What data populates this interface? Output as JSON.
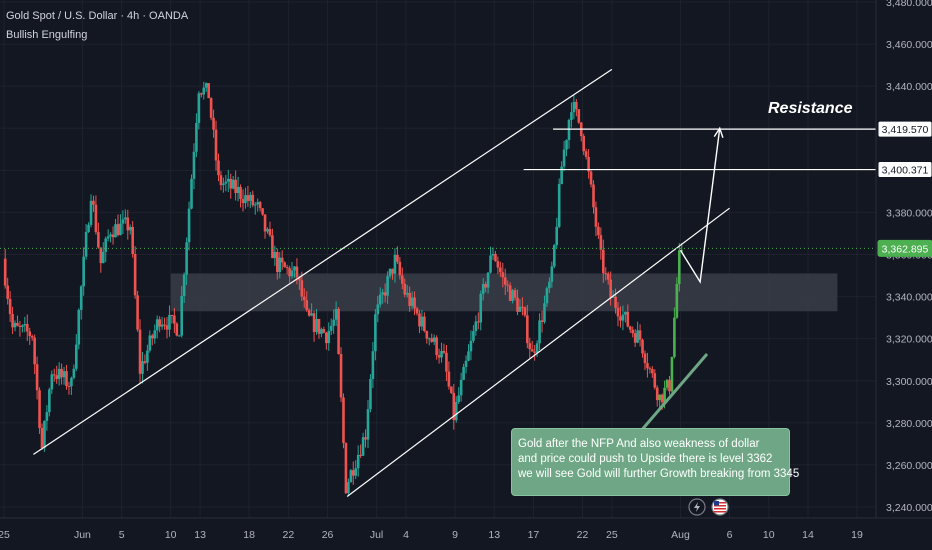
{
  "header": {
    "title": "Gold Spot / U.S. Dollar · 4h · OANDA",
    "pattern": "Bullish Engulfing"
  },
  "annotations": {
    "resistance": "Resistance",
    "callout": [
      "Gold after the NFP And also weakness of dollar",
      "and price could push to Upside there is level 3362",
      "we will see Gold will further Growth breaking from 3345"
    ]
  },
  "colors": {
    "background": "#131722",
    "up_candle": "#26a69a",
    "up_candle_bright": "#4caf50",
    "down_candle": "#ef5350",
    "grid": "#1e222d",
    "zone": "#3a3d48",
    "price_tag_current": "#4caf50",
    "callout_bg": "#6fa786"
  },
  "chart_data": {
    "type": "candlestick",
    "symbol": "Gold Spot / U.S. Dollar",
    "timeframe": "4h",
    "source": "OANDA",
    "ylim": [
      3240,
      3480
    ],
    "y_ticks": [
      3240,
      3260,
      3280,
      3300,
      3320,
      3340,
      3360,
      3380,
      3400,
      3420,
      3440,
      3460,
      3480
    ],
    "y_tick_labels": [
      "3,240.000",
      "3,260.000",
      "3,280.000",
      "3,300.000",
      "3,320.000",
      "3,340.000",
      "3,360.000",
      "3,380.000",
      "3,400.000",
      "3,420.000",
      "3,440.000",
      "3,460.000",
      "3,480.000"
    ],
    "x_ticks": [
      {
        "label": "25",
        "day": -7
      },
      {
        "label": "Jun",
        "day": 1
      },
      {
        "label": "5",
        "day": 5
      },
      {
        "label": "10",
        "day": 10
      },
      {
        "label": "13",
        "day": 13
      },
      {
        "label": "18",
        "day": 18
      },
      {
        "label": "22",
        "day": 22
      },
      {
        "label": "26",
        "day": 26
      },
      {
        "label": "Jul",
        "day": 31
      },
      {
        "label": "4",
        "day": 34
      },
      {
        "label": "9",
        "day": 39
      },
      {
        "label": "13",
        "day": 43
      },
      {
        "label": "17",
        "day": 47
      },
      {
        "label": "22",
        "day": 52
      },
      {
        "label": "25",
        "day": 55
      },
      {
        "label": "Aug",
        "day": 62
      },
      {
        "label": "6",
        "day": 67
      },
      {
        "label": "10",
        "day": 71
      },
      {
        "label": "14",
        "day": 75
      },
      {
        "label": "19",
        "day": 80
      }
    ],
    "price_path": [
      [
        -7,
        3358
      ],
      [
        -6,
        3325
      ],
      [
        -4,
        3322
      ],
      [
        -3,
        3268
      ],
      [
        -2,
        3305
      ],
      [
        0,
        3298
      ],
      [
        2,
        3390
      ],
      [
        3,
        3356
      ],
      [
        4,
        3372
      ],
      [
        6,
        3374
      ],
      [
        7,
        3305
      ],
      [
        9,
        3330
      ],
      [
        11,
        3325
      ],
      [
        13,
        3440
      ],
      [
        14,
        3436
      ],
      [
        15,
        3395
      ],
      [
        17,
        3390
      ],
      [
        19,
        3382
      ],
      [
        21,
        3355
      ],
      [
        23,
        3350
      ],
      [
        24,
        3330
      ],
      [
        26,
        3322
      ],
      [
        27,
        3330
      ],
      [
        28,
        3250
      ],
      [
        30,
        3275
      ],
      [
        31,
        3330
      ],
      [
        33,
        3357
      ],
      [
        34,
        3342
      ],
      [
        36,
        3325
      ],
      [
        38,
        3310
      ],
      [
        39,
        3283
      ],
      [
        41,
        3322
      ],
      [
        43,
        3362
      ],
      [
        44,
        3348
      ],
      [
        46,
        3332
      ],
      [
        47,
        3312
      ],
      [
        49,
        3350
      ],
      [
        50,
        3402
      ],
      [
        51,
        3432
      ],
      [
        52,
        3420
      ],
      [
        53,
        3390
      ],
      [
        54,
        3358
      ],
      [
        55,
        3340
      ],
      [
        56,
        3333
      ],
      [
        57,
        3325
      ],
      [
        58,
        3320
      ],
      [
        59,
        3305
      ],
      [
        60,
        3292
      ],
      [
        61,
        3298
      ],
      [
        62,
        3362
      ]
    ],
    "levels": [
      {
        "label": "3,419.570",
        "value": 3419.57,
        "x_from": 49,
        "style": "line"
      },
      {
        "label": "3,400.371",
        "value": 3400.371,
        "x_from": 46,
        "style": "line"
      },
      {
        "label": "3,362.895",
        "value": 3362.895,
        "style": "current"
      }
    ],
    "zone": {
      "from": 3333,
      "to": 3351,
      "x_from": 10,
      "x_to": 78
    },
    "channels": [
      {
        "x1": -4,
        "y1": 3265,
        "x2": 55,
        "y2": 3448
      },
      {
        "x1": 28,
        "y1": 3245,
        "x2": 67,
        "y2": 3382
      }
    ],
    "projection": [
      [
        62,
        3362
      ],
      [
        64,
        3347
      ],
      [
        66,
        3420
      ]
    ],
    "event_icons": [
      "lightning-icon",
      "us-flag-icon"
    ]
  }
}
